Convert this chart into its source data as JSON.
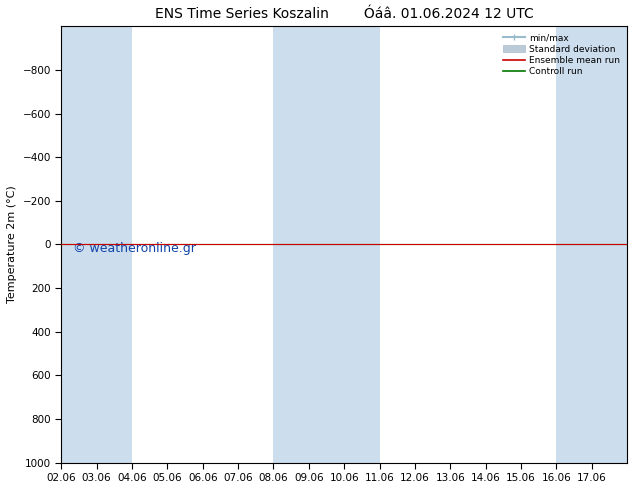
{
  "title_left": "ENS Time Series Koszalin",
  "title_right": "Óáâ. 01.06.2024 12 UTC",
  "ylabel": "Temperature 2m (°C)",
  "xlim": [
    0,
    16
  ],
  "ylim": [
    1000,
    -1000
  ],
  "yticks": [
    -800,
    -600,
    -400,
    -200,
    0,
    200,
    400,
    600,
    800,
    1000
  ],
  "xtick_labels": [
    "02.06",
    "03.06",
    "04.06",
    "05.06",
    "06.06",
    "07.06",
    "08.06",
    "09.06",
    "10.06",
    "11.06",
    "12.06",
    "13.06",
    "14.06",
    "15.06",
    "16.06",
    "17.06"
  ],
  "shaded_cols": [
    0,
    1,
    6,
    7,
    8,
    14,
    15
  ],
  "shade_color": "#ccdded",
  "bg_color": "#ffffff",
  "plot_bg_color": "#ffffff",
  "control_run_y": 0,
  "control_run_color": "#007700",
  "ensemble_mean_color": "#cc0000",
  "minmax_color": "#99bbcc",
  "std_color": "#bbccd8",
  "watermark": "© weatheronline.gr",
  "watermark_color": "#1144aa",
  "watermark_fontsize": 9,
  "legend_entries": [
    "min/max",
    "Standard deviation",
    "Ensemble mean run",
    "Controll run"
  ],
  "title_fontsize": 10,
  "axis_fontsize": 8,
  "tick_fontsize": 7.5
}
